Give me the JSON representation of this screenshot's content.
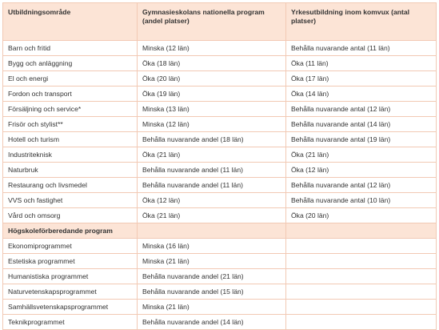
{
  "table": {
    "header": [
      "Utbildningsområde",
      "Gymnasieskolans nationella program (andel platser)",
      "Yrkesutbildning inom komvux (antal platser)"
    ],
    "rows": [
      [
        "Barn och fritid",
        "Minska (12 län)",
        "Behålla nuvarande antal (11 län)"
      ],
      [
        "Bygg och anläggning",
        "Öka (18 län)",
        "Öka (11 län)"
      ],
      [
        "El och energi",
        "Öka (20 län)",
        "Öka (17 län)"
      ],
      [
        "Fordon och transport",
        "Öka (19 län)",
        "Öka (14 län)"
      ],
      [
        "Försäljning och service*",
        "Minska (13 län)",
        "Behålla nuvarande antal (12 län)"
      ],
      [
        "Frisör och stylist**",
        "Minska (12 län)",
        "Behålla nuvarande antal (14 län)"
      ],
      [
        "Hotell och turism",
        "Behålla nuvarande andel (18 län)",
        "Behålla nuvarande antal (19 län)"
      ],
      [
        "Industriteknisk",
        "Öka (21 län)",
        "Öka (21 län)"
      ],
      [
        "Naturbruk",
        "Behålla nuvarande andel (11 län)",
        "Öka (12 län)"
      ],
      [
        "Restaurang och livsmedel",
        "Behålla nuvarande andel (11 län)",
        "Behålla nuvarande antal (12 län)"
      ],
      [
        "VVS och fastighet",
        "Öka (12 län)",
        "Behålla nuvarande antal (10 län)"
      ],
      [
        "Vård och omsorg",
        "Öka (21 län)",
        "Öka (20 län)"
      ]
    ],
    "section": {
      "title": "Högskoleförberedande program",
      "rows": [
        [
          "Ekonomiprogrammet",
          "Minska (16 län)"
        ],
        [
          "Estetiska programmet",
          "Minska (21 län)"
        ],
        [
          "Humanistiska programmet",
          "Behålla nuvarande andel (21 län)"
        ],
        [
          "Naturvetenskapsprogrammet",
          "Behålla nuvarande andel (15 län)"
        ],
        [
          "Samhällsvetenskapsprogrammet",
          "Minska (21 län)"
        ],
        [
          "Teknikprogrammet",
          "Behålla nuvarande andel (14 län)"
        ]
      ]
    }
  }
}
